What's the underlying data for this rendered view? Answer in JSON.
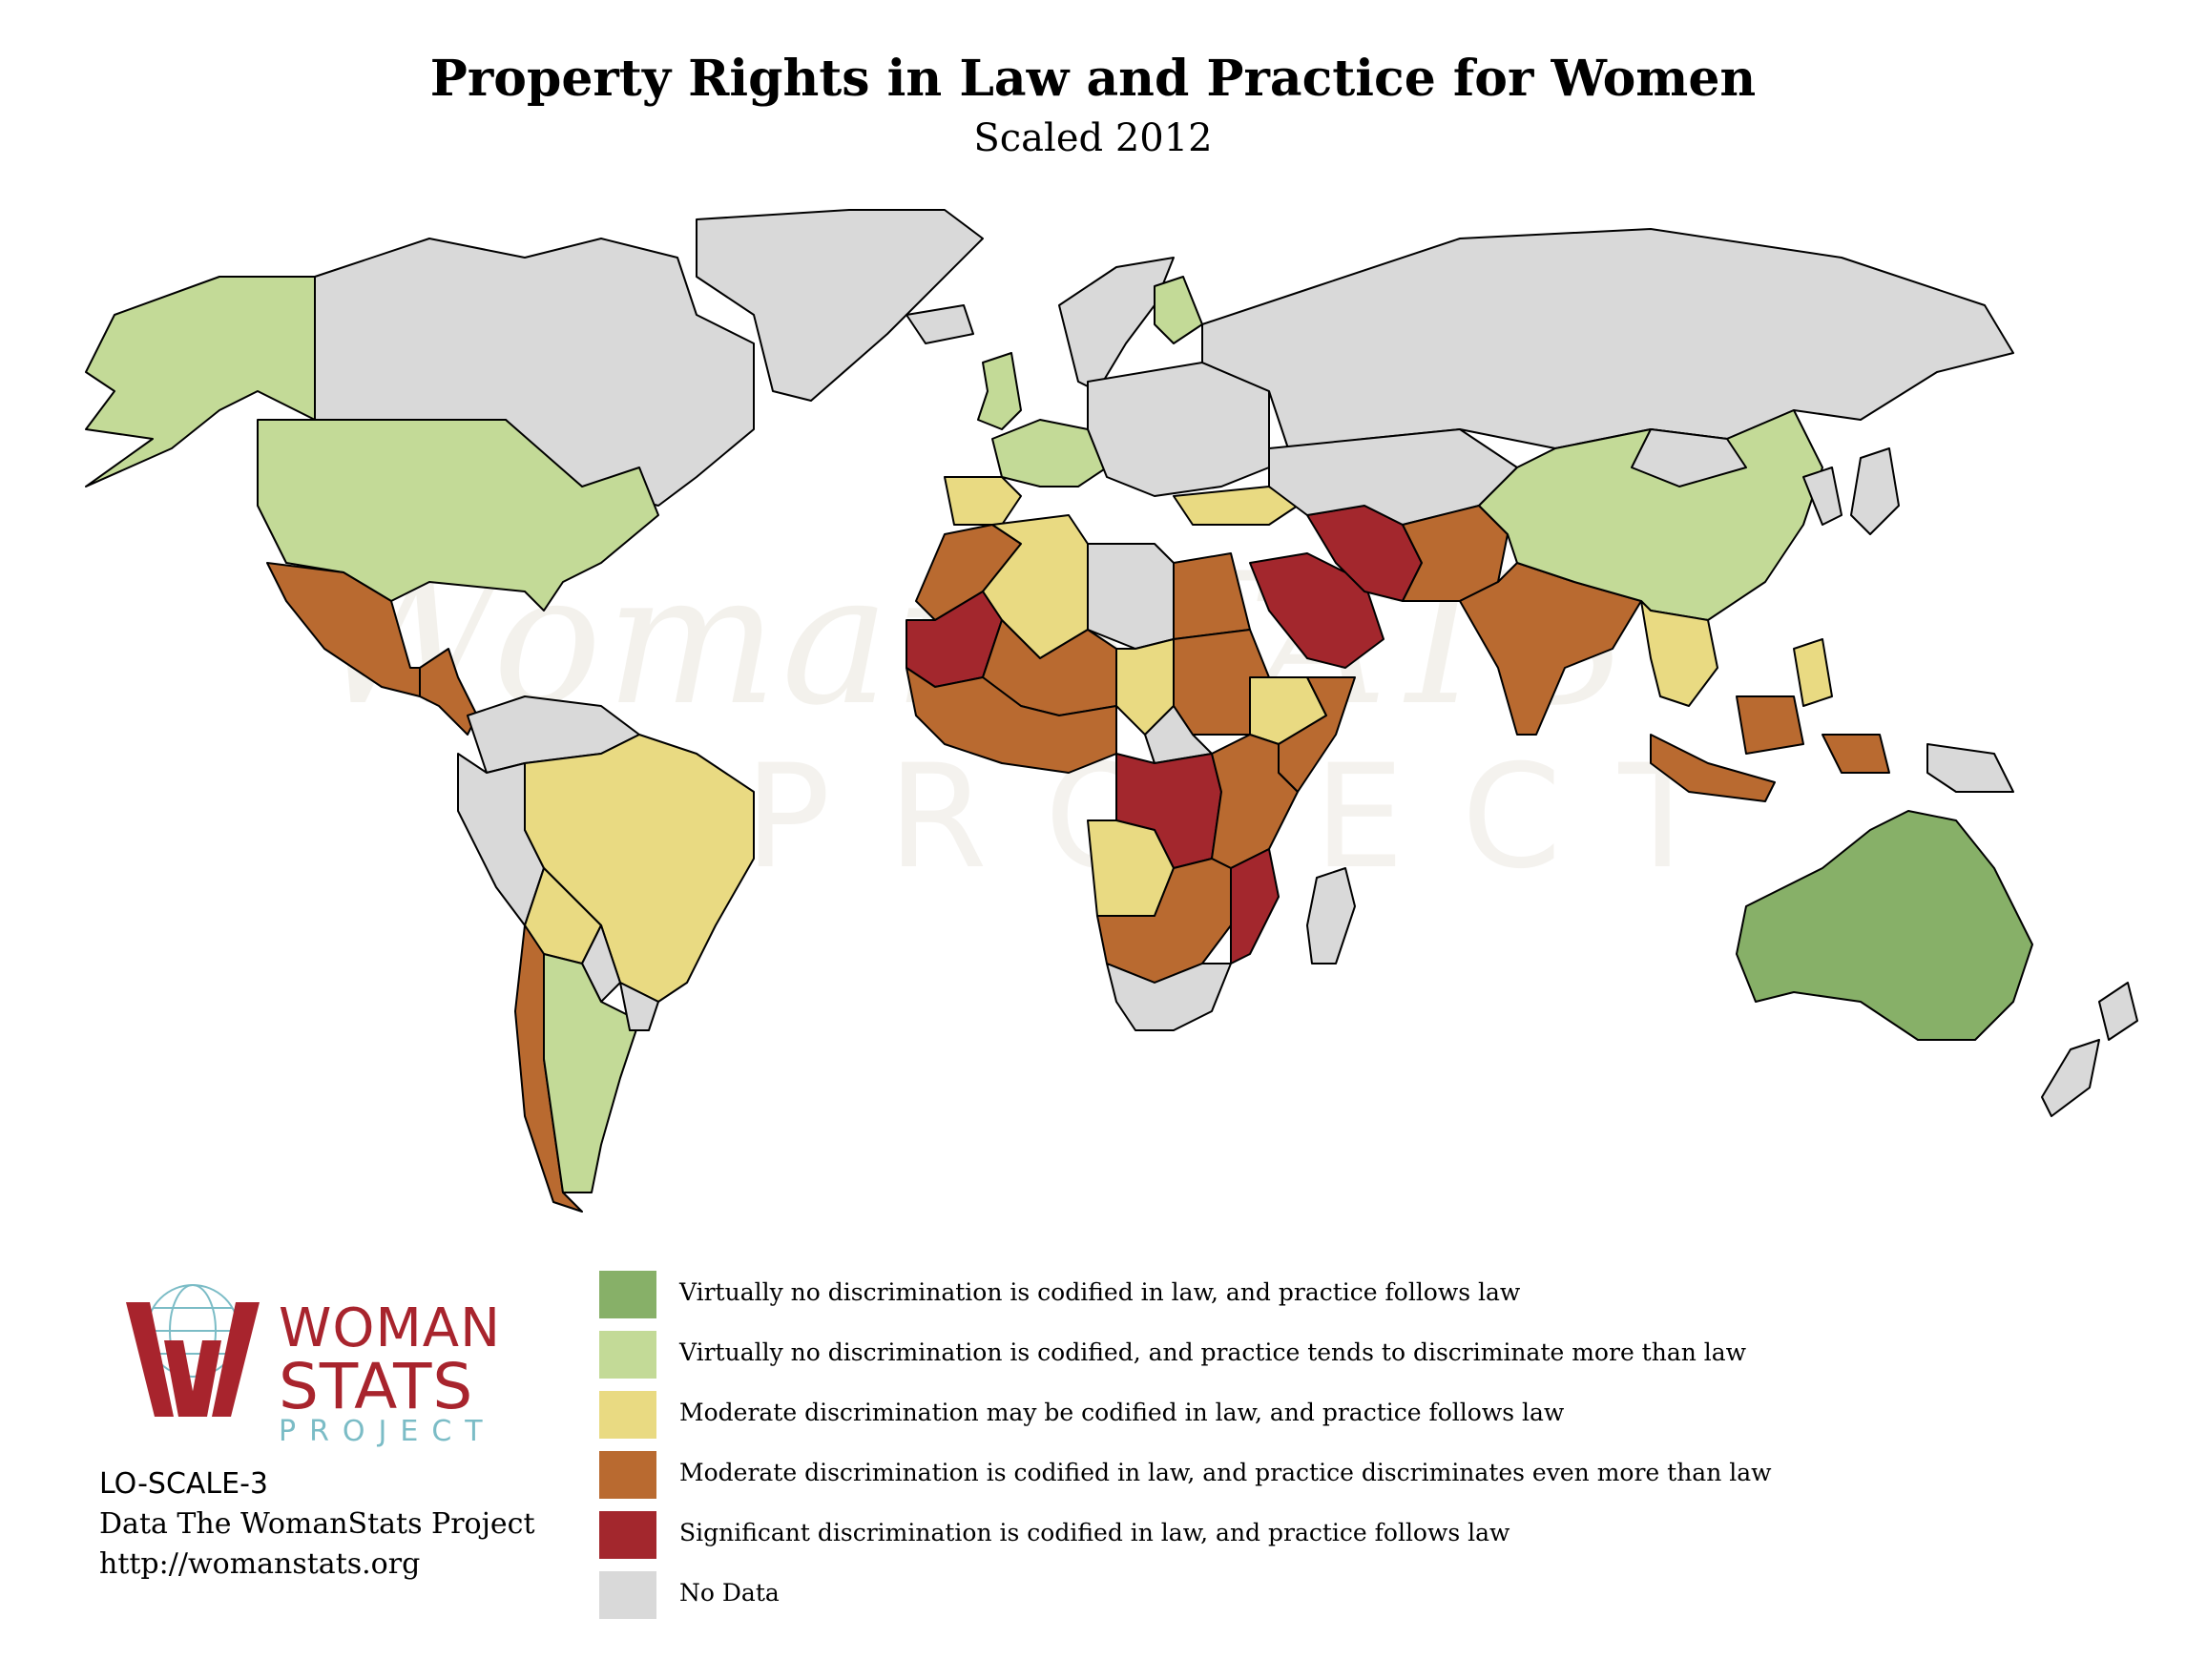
{
  "header": {
    "title": "Property Rights in Law and Practice for Women",
    "subtitle": "Scaled 2012"
  },
  "watermark": {
    "main": "WomanSTATS",
    "sub": "PROJECT"
  },
  "colors": {
    "level1": "#87b068",
    "level2": "#c3da97",
    "level3": "#e9da82",
    "level4": "#b96a30",
    "level5": "#a3272d",
    "nodata": "#d9d9d9",
    "border": "#000000",
    "logo_red": "#a8242d",
    "logo_teal": "#7bbcc6"
  },
  "logo": {
    "line1": "WOMAN",
    "line2": "STATS",
    "line3": "PROJECT"
  },
  "credits": {
    "code": "LO-SCALE-3",
    "source": "Data The WomanStats Project",
    "url": "http://womanstats.org"
  },
  "legend": [
    {
      "label": "Virtually no discrimination is codified in law, and practice follows law",
      "color": "#87b068"
    },
    {
      "label": "Virtually no discrimination is codified, and practice tends to discriminate more than law",
      "color": "#c3da97"
    },
    {
      "label": "Moderate discrimination may be codified in law, and practice follows law",
      "color": "#e9da82"
    },
    {
      "label": "Moderate discrimination is codified in law, and practice discriminates even more than law",
      "color": "#b96a30"
    },
    {
      "label": "Significant discrimination is codified in law, and practice follows law",
      "color": "#a3272d"
    },
    {
      "label": "No Data",
      "color": "#d9d9d9"
    }
  ],
  "regions": [
    {
      "name": "alaska",
      "level": "level2"
    },
    {
      "name": "canada",
      "level": "nodata"
    },
    {
      "name": "greenland",
      "level": "nodata"
    },
    {
      "name": "united-states",
      "level": "level2"
    },
    {
      "name": "mexico",
      "level": "level4"
    },
    {
      "name": "central-america",
      "level": "level4"
    },
    {
      "name": "colombia-venezuela",
      "level": "nodata"
    },
    {
      "name": "peru-ecuador",
      "level": "nodata"
    },
    {
      "name": "brazil",
      "level": "level3"
    },
    {
      "name": "bolivia",
      "level": "level3"
    },
    {
      "name": "paraguay",
      "level": "nodata"
    },
    {
      "name": "chile",
      "level": "level4"
    },
    {
      "name": "argentina",
      "level": "level2"
    },
    {
      "name": "uruguay",
      "level": "nodata"
    },
    {
      "name": "iceland",
      "level": "nodata"
    },
    {
      "name": "united-kingdom",
      "level": "level2"
    },
    {
      "name": "scandinavia",
      "level": "nodata"
    },
    {
      "name": "finland",
      "level": "level2"
    },
    {
      "name": "western-europe",
      "level": "level2"
    },
    {
      "name": "iberia",
      "level": "level3"
    },
    {
      "name": "eastern-europe",
      "level": "nodata"
    },
    {
      "name": "russia",
      "level": "nodata"
    },
    {
      "name": "turkey",
      "level": "level3"
    },
    {
      "name": "morocco",
      "level": "level4"
    },
    {
      "name": "algeria",
      "level": "level3"
    },
    {
      "name": "libya",
      "level": "nodata"
    },
    {
      "name": "egypt",
      "level": "level4"
    },
    {
      "name": "mauritania",
      "level": "level5"
    },
    {
      "name": "mali-niger",
      "level": "level4"
    },
    {
      "name": "chad",
      "level": "level3"
    },
    {
      "name": "sudan",
      "level": "level4"
    },
    {
      "name": "west-africa",
      "level": "level4"
    },
    {
      "name": "central-african-rep",
      "level": "nodata"
    },
    {
      "name": "ethiopia",
      "level": "level3"
    },
    {
      "name": "somalia",
      "level": "level4"
    },
    {
      "name": "dr-congo",
      "level": "level5"
    },
    {
      "name": "east-africa",
      "level": "level4"
    },
    {
      "name": "angola",
      "level": "level3"
    },
    {
      "name": "mozambique",
      "level": "level5"
    },
    {
      "name": "southern-africa",
      "level": "level4"
    },
    {
      "name": "south-africa",
      "level": "nodata"
    },
    {
      "name": "madagascar",
      "level": "nodata"
    },
    {
      "name": "saudi-arabia",
      "level": "level5"
    },
    {
      "name": "iran",
      "level": "level5"
    },
    {
      "name": "central-asia",
      "level": "nodata"
    },
    {
      "name": "afghanistan-pakistan",
      "level": "level4"
    },
    {
      "name": "india",
      "level": "level4"
    },
    {
      "name": "china",
      "level": "level2"
    },
    {
      "name": "mongolia",
      "level": "nodata"
    },
    {
      "name": "korea-japan",
      "level": "nodata"
    },
    {
      "name": "southeast-asia",
      "level": "level3"
    },
    {
      "name": "indonesia",
      "level": "level4"
    },
    {
      "name": "papua",
      "level": "nodata"
    },
    {
      "name": "australia",
      "level": "level1"
    },
    {
      "name": "new-zealand",
      "level": "nodata"
    }
  ]
}
